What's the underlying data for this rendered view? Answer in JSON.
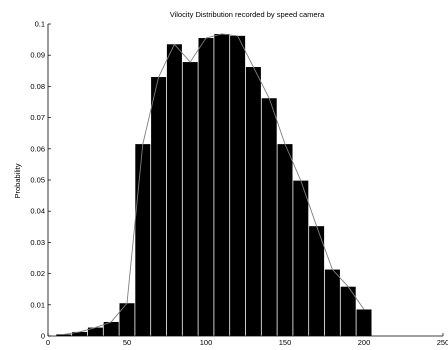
{
  "chart_data": {
    "type": "bar",
    "title": "Vilocity Distribution recorded by speed camera",
    "xlabel": "",
    "ylabel": "Probability",
    "xlim": [
      0,
      250
    ],
    "ylim": [
      0,
      0.1
    ],
    "bar_width": 9.5,
    "x": [
      10,
      20,
      30,
      40,
      50,
      60,
      70,
      80,
      90,
      100,
      110,
      120,
      130,
      140,
      150,
      160,
      170,
      180,
      190,
      200
    ],
    "values": [
      0.0005,
      0.0013,
      0.0027,
      0.0045,
      0.0105,
      0.0615,
      0.083,
      0.0935,
      0.0878,
      0.0955,
      0.0968,
      0.0962,
      0.0862,
      0.0762,
      0.0615,
      0.0498,
      0.0352,
      0.0213,
      0.0158,
      0.0085
    ],
    "x_ticks": [
      0,
      50,
      100,
      150,
      200,
      250
    ],
    "x_tick_labels": [
      "0",
      "50",
      "100",
      "150",
      "200",
      "250"
    ],
    "y_ticks": [
      0,
      0.01,
      0.02,
      0.03,
      0.04,
      0.05,
      0.06,
      0.07,
      0.08,
      0.09,
      0.1
    ],
    "y_tick_labels": [
      "0",
      "0.01",
      "0.02",
      "0.03",
      "0.04",
      "0.05",
      "0.06",
      "0.07",
      "0.08",
      "0.09",
      "0.1"
    ],
    "overlay_line": true,
    "grid": false,
    "colors": {
      "bar": "#000000",
      "line": "#7f7f7f",
      "axis": "#000000"
    }
  }
}
